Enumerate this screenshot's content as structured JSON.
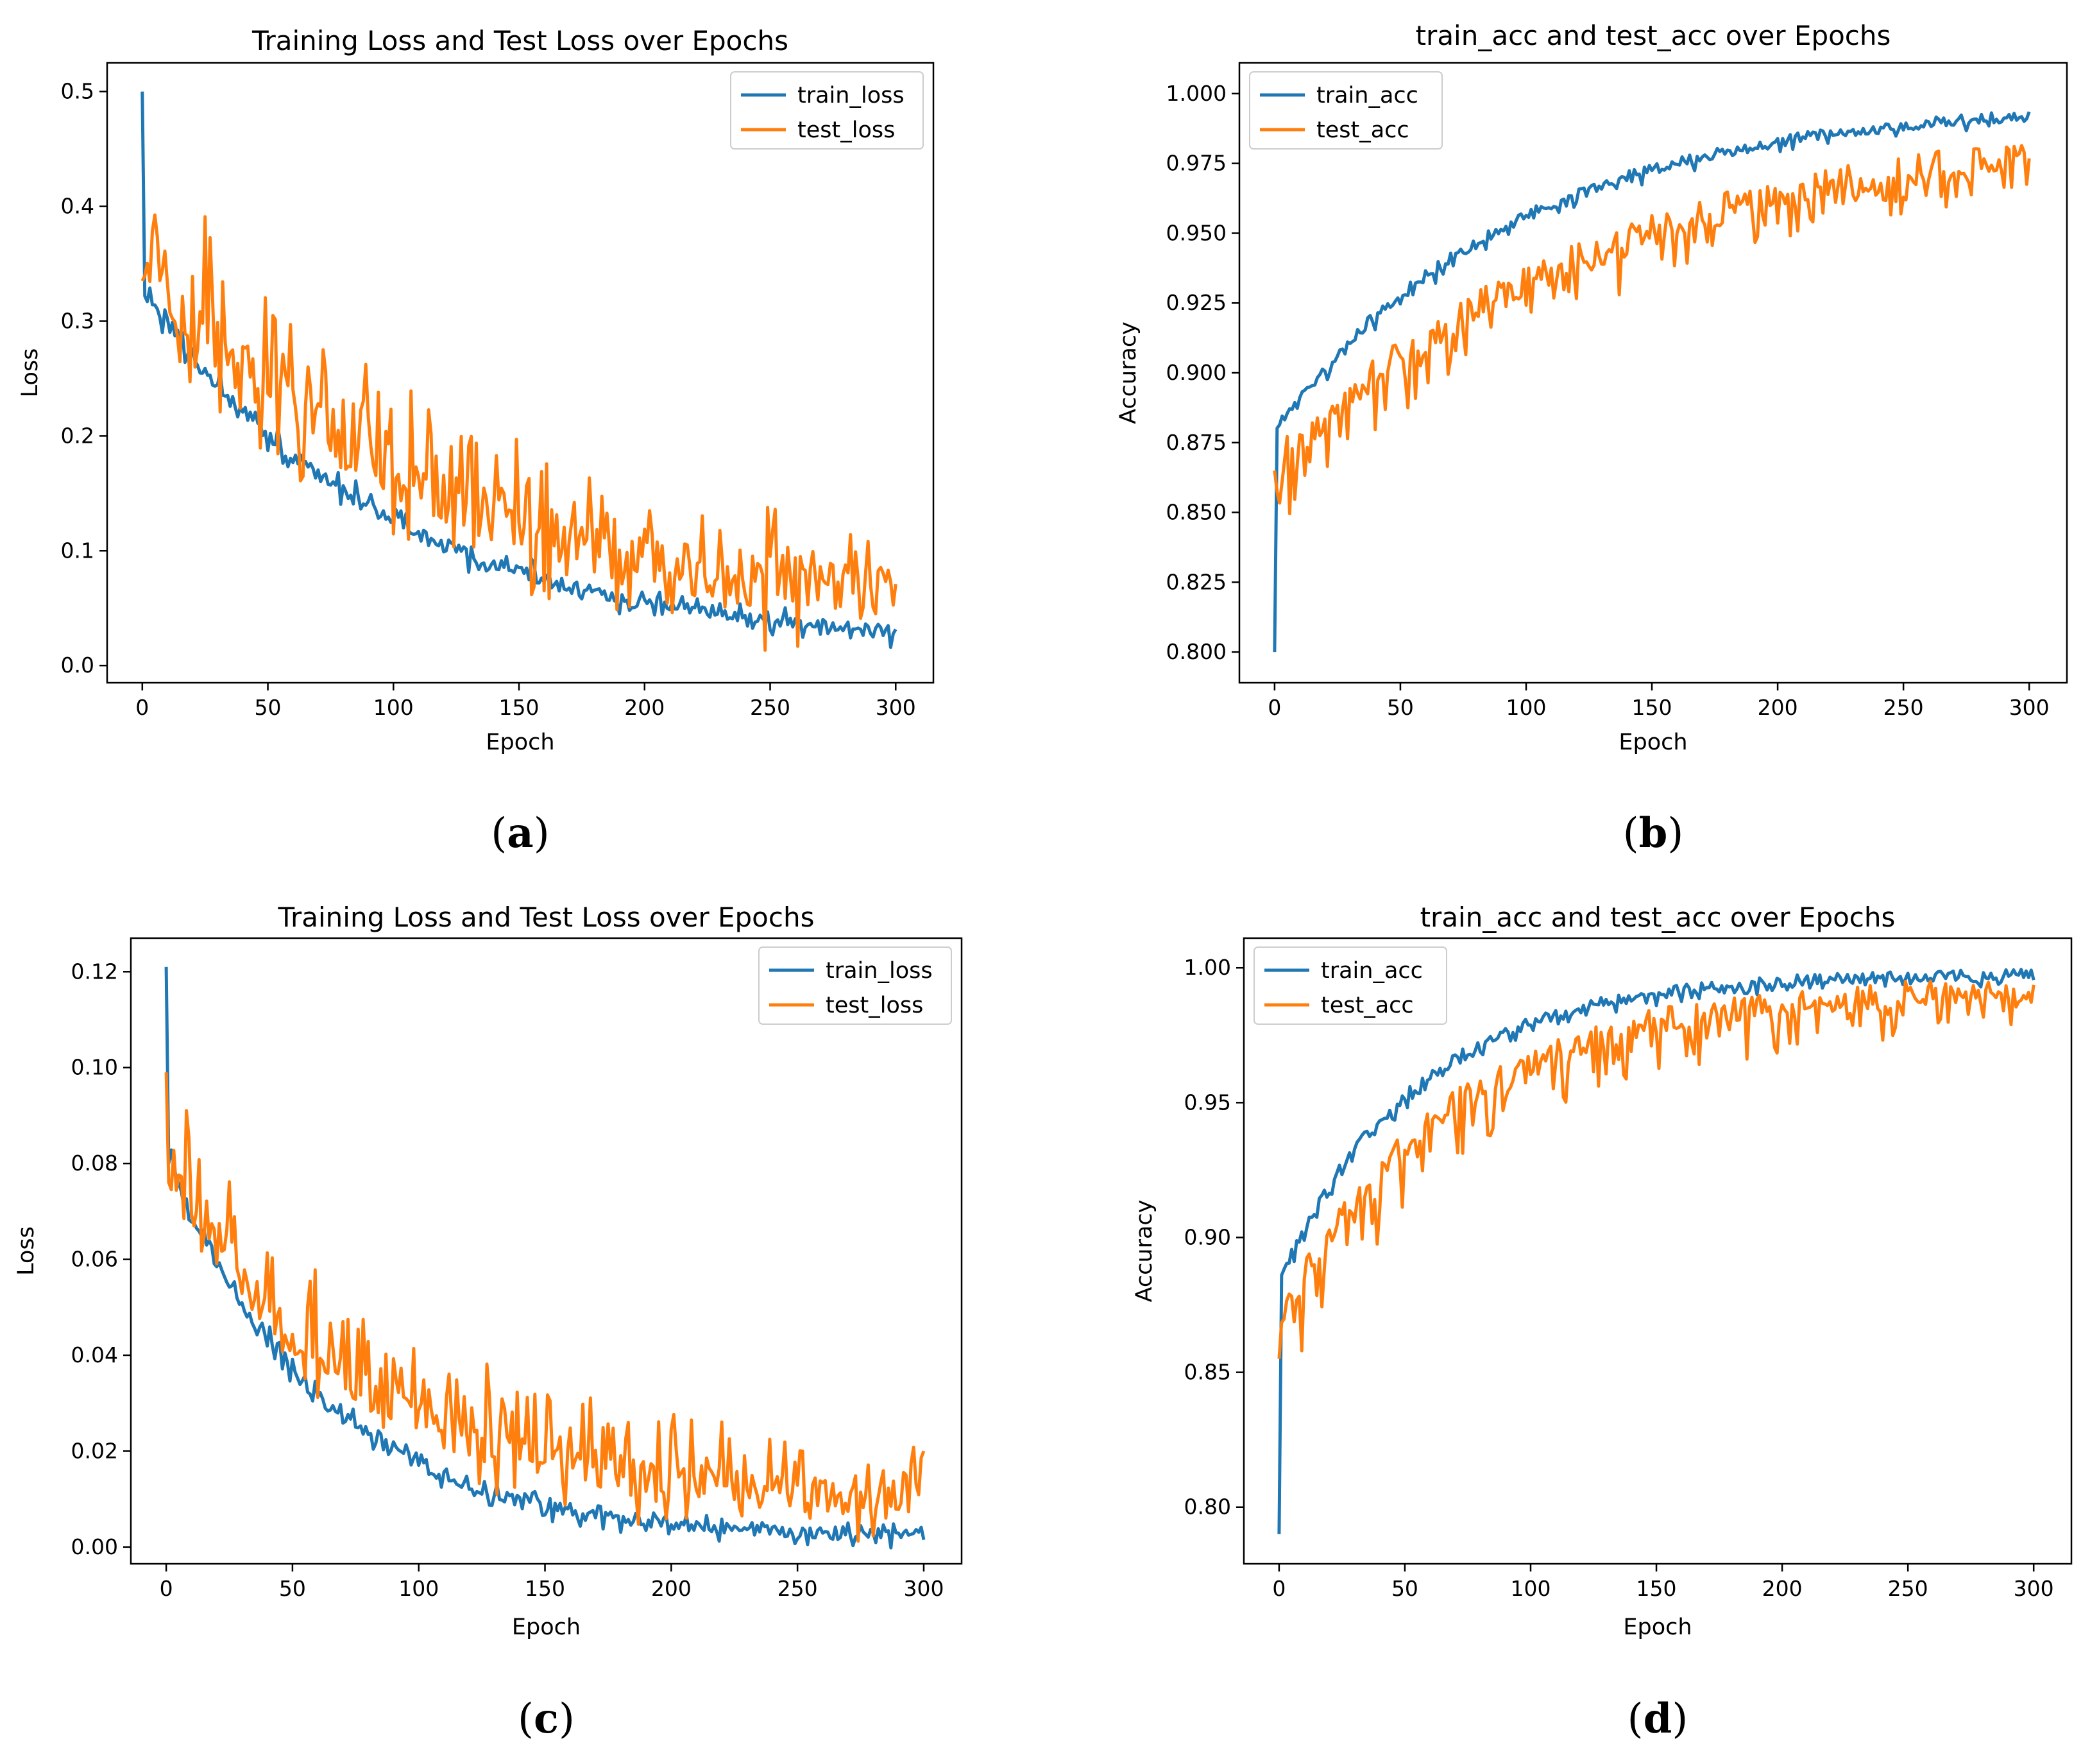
{
  "colors": {
    "train": "#1f77b4",
    "test": "#ff7f0e",
    "axis": "#000000"
  },
  "chart_data": [
    {
      "id": "a",
      "type": "line",
      "caption_letter": "a",
      "title": "Training Loss and Test Loss over Epochs",
      "xlabel": "Epoch",
      "ylabel": "Loss",
      "xlim": [
        -14,
        315
      ],
      "ylim": [
        -0.015,
        0.525
      ],
      "xticks": [
        0,
        50,
        100,
        150,
        200,
        250,
        300
      ],
      "yticks": [
        0.0,
        0.1,
        0.2,
        0.3,
        0.4,
        0.5
      ],
      "ytick_labels": [
        "0.0",
        "0.1",
        "0.2",
        "0.3",
        "0.4",
        "0.5"
      ],
      "legend_position": "upper-right",
      "series": [
        {
          "name": "train_loss",
          "shape": {
            "kind": "exp",
            "start": 0.5,
            "mid": 0.33,
            "end": 0.016,
            "tau": 95,
            "noise": 0.006,
            "spike_amp": 0.01,
            "seed": 11
          }
        },
        {
          "name": "test_loss",
          "shape": {
            "kind": "exp",
            "start": 0.335,
            "mid": 0.33,
            "end": 0.035,
            "tau": 110,
            "noise": 0.025,
            "spike_amp": 0.06,
            "seed": 23,
            "offset": 0.025
          }
        }
      ]
    },
    {
      "id": "b",
      "type": "line",
      "caption_letter": "b",
      "title": "train_acc and test_acc over Epochs",
      "xlabel": "Epoch",
      "ylabel": "Accuracy",
      "xlim": [
        -14,
        315
      ],
      "ylim": [
        0.789,
        1.011
      ],
      "xticks": [
        0,
        50,
        100,
        150,
        200,
        250,
        300
      ],
      "yticks": [
        0.8,
        0.825,
        0.85,
        0.875,
        0.9,
        0.925,
        0.95,
        0.975,
        1.0
      ],
      "ytick_labels": [
        "0.800",
        "0.825",
        "0.850",
        "0.875",
        "0.900",
        "0.925",
        "0.950",
        "0.975",
        "1.000"
      ],
      "legend_position": "upper-left",
      "series": [
        {
          "name": "train_acc",
          "shape": {
            "kind": "rise",
            "start": 0.8,
            "mid": 0.88,
            "end": 0.997,
            "tau": 95,
            "noise": 0.002,
            "spike_amp": 0.004,
            "seed": 5
          }
        },
        {
          "name": "test_acc",
          "shape": {
            "kind": "rise",
            "start": 0.865,
            "mid": 0.875,
            "end": 0.992,
            "tau": 130,
            "noise": 0.006,
            "spike_amp": 0.018,
            "seed": 31,
            "offset": -0.008
          }
        }
      ]
    },
    {
      "id": "c",
      "type": "line",
      "caption_letter": "c",
      "title": "Training Loss and Test Loss over Epochs",
      "xlabel": "Epoch",
      "ylabel": "Loss",
      "xlim": [
        -14,
        315
      ],
      "ylim": [
        -0.0035,
        0.127
      ],
      "xticks": [
        0,
        50,
        100,
        150,
        200,
        250,
        300
      ],
      "yticks": [
        0.0,
        0.02,
        0.04,
        0.06,
        0.08,
        0.1,
        0.12
      ],
      "ytick_labels": [
        "0.00",
        "0.02",
        "0.04",
        "0.06",
        "0.08",
        "0.10",
        "0.12"
      ],
      "legend_position": "upper-right",
      "series": [
        {
          "name": "train_loss",
          "shape": {
            "kind": "exp",
            "start": 0.121,
            "mid": 0.082,
            "end": 0.002,
            "tau": 60,
            "noise": 0.0012,
            "spike_amp": 0.002,
            "seed": 7
          }
        },
        {
          "name": "test_loss",
          "shape": {
            "kind": "exp",
            "start": 0.099,
            "mid": 0.075,
            "end": 0.008,
            "tau": 70,
            "noise": 0.004,
            "spike_amp": 0.014,
            "seed": 41,
            "offset": 0.004
          }
        }
      ]
    },
    {
      "id": "d",
      "type": "line",
      "caption_letter": "d",
      "title": "train_acc and test_acc over Epochs",
      "xlabel": "Epoch",
      "ylabel": "Accuracy",
      "xlim": [
        -14,
        315
      ],
      "ylim": [
        0.779,
        1.011
      ],
      "xticks": [
        0,
        50,
        100,
        150,
        200,
        250,
        300
      ],
      "yticks": [
        0.8,
        0.85,
        0.9,
        0.95,
        1.0
      ],
      "ytick_labels": [
        "0.80",
        "0.85",
        "0.90",
        "0.95",
        "1.00"
      ],
      "legend_position": "upper-left",
      "series": [
        {
          "name": "train_acc",
          "shape": {
            "kind": "rise",
            "start": 0.79,
            "mid": 0.885,
            "end": 0.998,
            "tau": 55,
            "noise": 0.002,
            "spike_amp": 0.004,
            "seed": 13
          }
        },
        {
          "name": "test_acc",
          "shape": {
            "kind": "rise",
            "start": 0.855,
            "mid": 0.875,
            "end": 0.995,
            "tau": 65,
            "noise": 0.005,
            "spike_amp": 0.02,
            "seed": 59,
            "offset": -0.006
          }
        }
      ]
    }
  ]
}
